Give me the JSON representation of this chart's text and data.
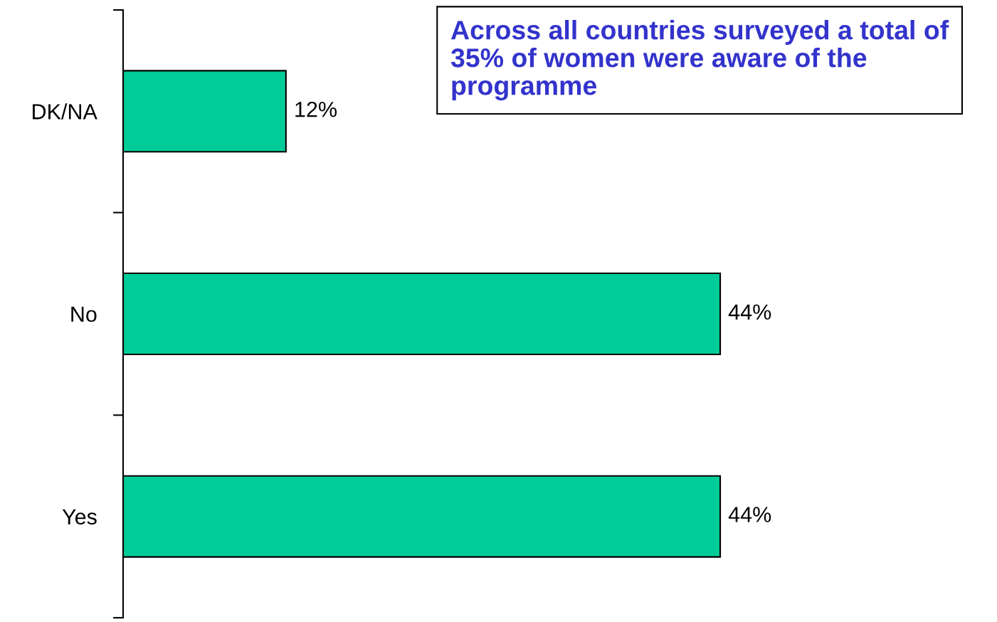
{
  "chart_data": {
    "type": "bar",
    "orientation": "horizontal",
    "categories": [
      "DK/NA",
      "No",
      "Yes"
    ],
    "values": [
      12,
      44,
      44
    ],
    "color": "#00cc99",
    "data_labels": true,
    "value_labels": [
      "12%",
      "44%",
      "44%"
    ],
    "tick_labels": "y",
    "grid": false,
    "annotations": [
      "Across all countries surveyed a total of 35% of women were aware of the programme"
    ]
  }
}
